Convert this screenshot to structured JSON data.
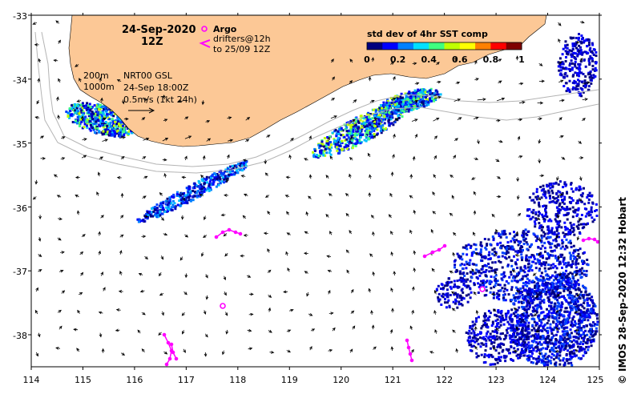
{
  "map": {
    "date_line1": "24-Sep-2020",
    "date_line2": "12Z",
    "legend_argo": "Argo",
    "legend_drifters_line1": "drifters@12h",
    "legend_drifters_line2": "to 25/09 12Z",
    "colorbar": {
      "title": "std dev of 4hr SST comp",
      "ticks": [
        "0",
        "0.2",
        "0.4",
        "0.6",
        "0.8",
        "1"
      ],
      "colors": [
        "#00007f",
        "#0000ff",
        "#0080ff",
        "#00e0ff",
        "#40ff80",
        "#c0ff00",
        "#ffff00",
        "#ff8000",
        "#ff0000",
        "#7f0000"
      ]
    },
    "model_info": {
      "contour1": "200m",
      "contour2": "1000m",
      "line1": "NRT00 GSL",
      "line2": "24-Sep 18:00Z",
      "line3": "0.5m/s (1kt 24h)"
    },
    "x_ticks": [
      "114",
      "115",
      "116",
      "117",
      "118",
      "119",
      "120",
      "121",
      "122",
      "123",
      "124",
      "125"
    ],
    "y_ticks": [
      "-33",
      "-34",
      "-35",
      "-36",
      "-37",
      "-38"
    ],
    "credit": "IMOS 28-Sep-2020 12:32 Hobart",
    "colors": {
      "land": "#fcc896",
      "ocean": "#ffffff",
      "argo": "#ff00ff",
      "drifters": "#ff00ff",
      "bathy": "#b4b4b4",
      "arrows": "#000000"
    }
  }
}
